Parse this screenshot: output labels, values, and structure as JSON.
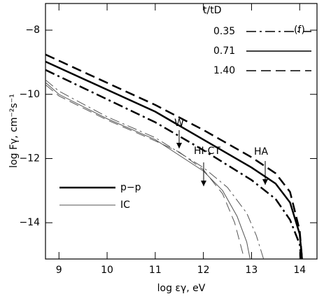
{
  "chart_data": {
    "type": "line",
    "xlabel": "log εγ,  eV",
    "ylabel": "log Fγ,  cm⁻²s⁻¹",
    "xlim": [
      8.72,
      14.36
    ],
    "ylim": [
      -15.13,
      -7.17
    ],
    "xticks": [
      9,
      10,
      11,
      12,
      13,
      14
    ],
    "yticks": [
      {
        "value": -8,
        "label": "−8"
      },
      {
        "value": -10,
        "label": "−10"
      },
      {
        "value": -12,
        "label": "−12"
      },
      {
        "value": -14,
        "label": "−14"
      }
    ],
    "legend_title": "t/tD",
    "panel_label": "(f)",
    "process_legend": [
      {
        "name": "p−p",
        "width": 2.5
      },
      {
        "name": "IC",
        "width": 1
      }
    ],
    "annotations": [
      "W",
      "HI-CT",
      "HA"
    ],
    "series": [
      {
        "name": "0.35",
        "color": "#000",
        "dash": "dashdot",
        "width": 2.5,
        "x": [
          8.72,
          11,
          12,
          13,
          13.5,
          13.8,
          14,
          14.03
        ],
        "values": [
          -9.24,
          -10.87,
          -11.74,
          -12.67,
          -13.26,
          -13.91,
          -14.67,
          -15.13
        ]
      },
      {
        "name": "0.71",
        "color": "#000",
        "dash": "solid",
        "width": 2.5,
        "x": [
          8.72,
          11,
          12,
          13,
          13.5,
          13.8,
          14,
          14.05
        ],
        "values": [
          -8.98,
          -10.54,
          -11.41,
          -12.28,
          -12.78,
          -13.37,
          -14.35,
          -15.13
        ]
      },
      {
        "name": "1.40",
        "color": "#000",
        "dash": "dashed",
        "width": 2.5,
        "x": [
          8.72,
          11,
          12,
          13,
          13.5,
          13.8,
          14,
          14.05
        ],
        "values": [
          -8.76,
          -10.33,
          -11.11,
          -11.96,
          -12.46,
          -13.04,
          -14.24,
          -15.13
        ]
      },
      {
        "color": "#555",
        "dash": "dashdot",
        "width": 1,
        "x": [
          8.72,
          9,
          10,
          11,
          12,
          12.5,
          12.9,
          13.1,
          13.25
        ],
        "values": [
          -9.55,
          -9.9,
          -10.7,
          -11.35,
          -12.28,
          -12.9,
          -13.7,
          -14.4,
          -15.13
        ]
      },
      {
        "color": "#555",
        "dash": "solid",
        "width": 1,
        "x": [
          8.72,
          9,
          10,
          11,
          12,
          12.4,
          12.7,
          12.9,
          12.97
        ],
        "values": [
          -9.63,
          -10,
          -10.76,
          -11.41,
          -12.39,
          -13.0,
          -13.8,
          -14.6,
          -15.13
        ]
      },
      {
        "color": "#555",
        "dash": "dashed",
        "width": 1,
        "x": [
          8.72,
          9,
          10,
          11,
          11.5,
          12,
          12.4,
          12.65,
          12.85
        ],
        "values": [
          -9.7,
          -10.05,
          -10.8,
          -11.45,
          -11.8,
          -12.35,
          -13.1,
          -14.0,
          -15.13
        ]
      }
    ]
  }
}
